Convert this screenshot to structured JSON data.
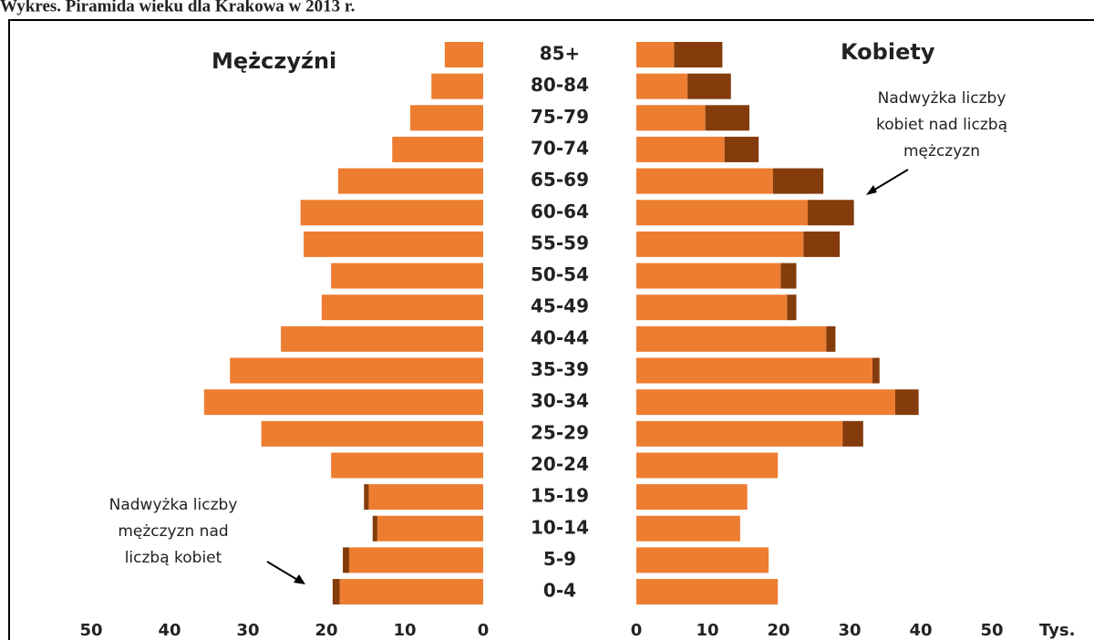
{
  "chart_data": {
    "type": "pyramid",
    "title": "Wykres. Piramida wieku dla Krakowa w 2013 r.",
    "left_label": "Mężczyźni",
    "right_label": "Kobiety",
    "categories": [
      "85+",
      "80-84",
      "75-79",
      "70-74",
      "65-69",
      "60-64",
      "55-59",
      "50-54",
      "45-49",
      "40-44",
      "35-39",
      "30-34",
      "25-29",
      "20-24",
      "15-19",
      "10-14",
      "5-9",
      "0-4"
    ],
    "series": [
      {
        "side": "left",
        "color": "#ed7d31",
        "values": [
          4.9,
          6.6,
          9.3,
          11.6,
          18.5,
          23.3,
          22.9,
          19.4,
          20.6,
          25.8,
          32.3,
          35.6,
          28.3,
          19.4,
          14.6,
          13.5,
          17.1,
          18.3
        ]
      },
      {
        "side": "left",
        "color": "#843c0c",
        "values": [
          0,
          0,
          0,
          0,
          0,
          0,
          0,
          0,
          0,
          0,
          0,
          0,
          0,
          0,
          0.6,
          0.6,
          0.8,
          0.9
        ]
      },
      {
        "side": "right",
        "color": "#ed7d31",
        "values": [
          5.3,
          7.2,
          9.7,
          12.4,
          19.2,
          24.1,
          23.5,
          20.3,
          21.2,
          26.7,
          33.2,
          36.4,
          29.0,
          19.9,
          15.6,
          14.6,
          18.6,
          19.9
        ]
      },
      {
        "side": "right",
        "color": "#843c0c",
        "values": [
          6.8,
          6.1,
          6.2,
          4.8,
          7.1,
          6.5,
          5.1,
          2.2,
          1.3,
          1.3,
          1.0,
          3.3,
          2.9,
          0,
          0,
          0,
          0,
          0
        ]
      }
    ],
    "xlim": [
      0,
      50
    ],
    "xticks": [
      0,
      10,
      20,
      30,
      40,
      50
    ],
    "x_unit": "Tys.",
    "annotations": [
      {
        "lines": [
          "Nadwyżka liczby",
          "kobiet nad liczbą",
          "mężczyzn"
        ]
      },
      {
        "lines": [
          "Nadwyżka liczby",
          "mężczyzn nad",
          "liczbą kobiet"
        ]
      }
    ]
  }
}
